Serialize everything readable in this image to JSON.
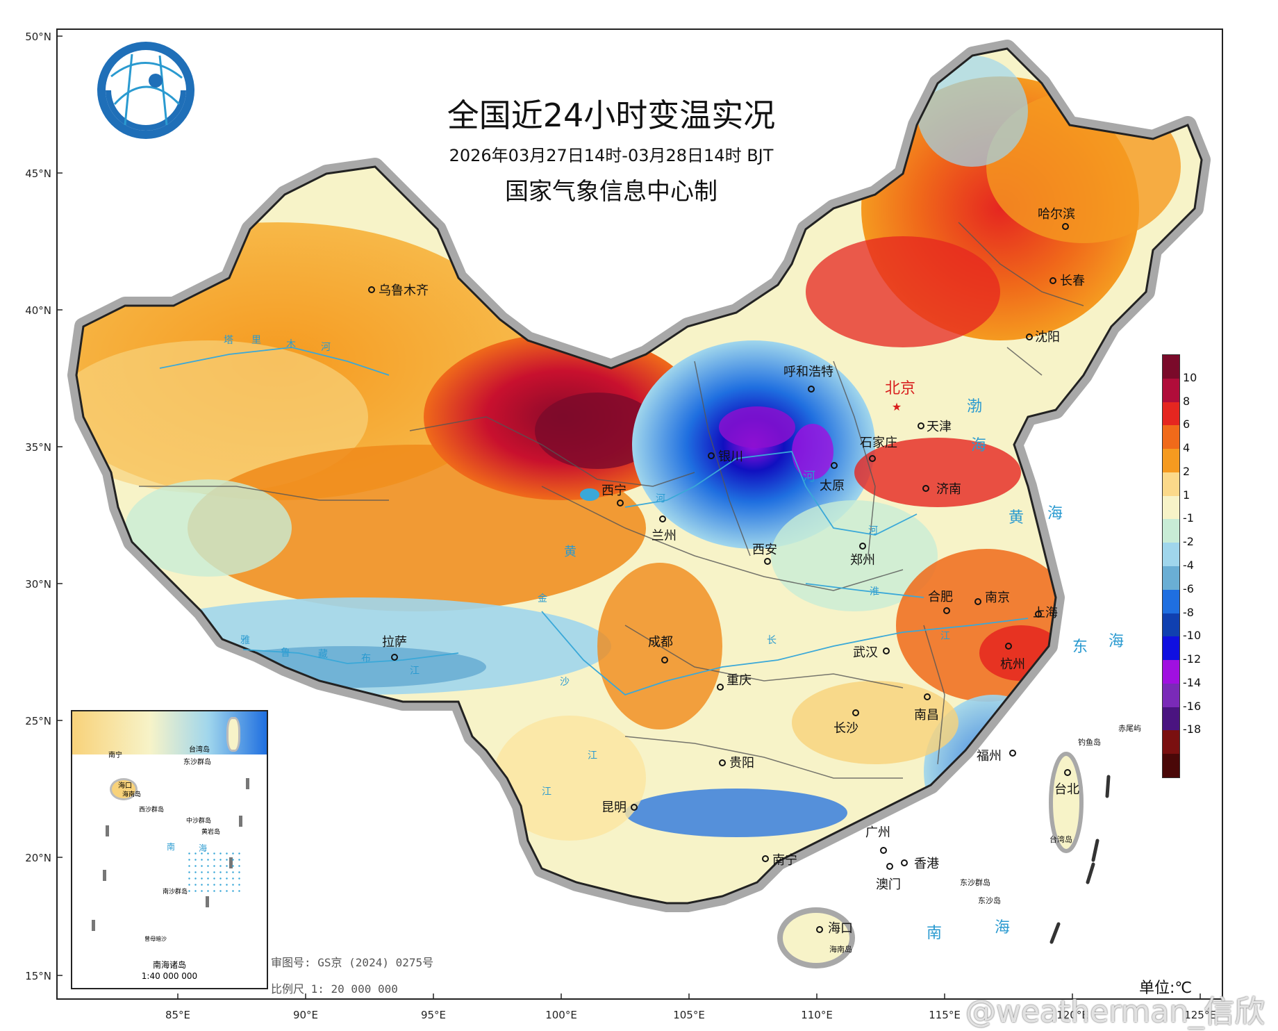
{
  "title": "全国近24小时变温实况",
  "subtitle": "2026年03月27日14时-03月28日14时 BJT",
  "producer": "国家气象信息中心制",
  "unit_label": "单位:℃",
  "review_number": "审图号: GS京 (2024) 0275号",
  "scale_label": "比例尺 1: 20 000 000",
  "inset": {
    "title": "南海诸岛",
    "scale": "1:40 000 000",
    "labels": [
      "南宁",
      "台湾岛",
      "东沙群岛",
      "海口",
      "海南岛",
      "西沙群岛",
      "中沙群岛",
      "黄岩岛",
      "南",
      "海",
      "南沙群岛",
      "曾母暗沙"
    ]
  },
  "lat_labels": [
    "50°N",
    "45°N",
    "40°N",
    "35°N",
    "30°N",
    "25°N",
    "20°N",
    "15°N"
  ],
  "lon_labels": [
    "85°E",
    "90°E",
    "95°E",
    "100°E",
    "105°E",
    "110°E",
    "115°E",
    "120°E",
    "125°E"
  ],
  "legend": {
    "labels": [
      "10",
      "8",
      "6",
      "4",
      "2",
      "1",
      "-1",
      "-2",
      "-4",
      "-6",
      "-8",
      "-10",
      "-12",
      "-14",
      "-16",
      "-18"
    ],
    "colors": [
      "#7a0a2a",
      "#b00d3a",
      "#e52620",
      "#f06a1a",
      "#f59a20",
      "#fbd98a",
      "#f7f3c8",
      "#c8ecd6",
      "#a0d6ec",
      "#6aaed4",
      "#1f6fe0",
      "#1040b0",
      "#1010e0",
      "#a010e0",
      "#7a2ab8",
      "#4a1480",
      "#7a1010",
      "#4a0808"
    ]
  },
  "cities": [
    "乌鲁木齐",
    "呼和浩特",
    "北京",
    "天津",
    "石家庄",
    "银川",
    "太原",
    "济南",
    "西宁",
    "兰州",
    "西安",
    "郑州",
    "合肥",
    "南京",
    "上海",
    "杭州",
    "武汉",
    "成都",
    "重庆",
    "拉萨",
    "长沙",
    "南昌",
    "福州",
    "贵阳",
    "昆明",
    "台北",
    "广州",
    "香港",
    "澳门",
    "南宁",
    "海口",
    "哈尔滨",
    "长春",
    "沈阳"
  ],
  "seas": [
    "渤",
    "海",
    "黄",
    "海",
    "东",
    "海",
    "南",
    "海"
  ],
  "islands": [
    "钓鱼岛",
    "赤尾屿",
    "台湾岛",
    "东沙群岛",
    "东沙岛",
    "海南岛"
  ],
  "rivers": [
    "塔",
    "里",
    "木",
    "河",
    "黄",
    "河",
    "河",
    "淮",
    "长",
    "江",
    "江",
    "江",
    "金",
    "沙",
    "雅",
    "鲁",
    "藏",
    "布",
    "江",
    "河"
  ],
  "watermark": "@weatherman_信欣"
}
